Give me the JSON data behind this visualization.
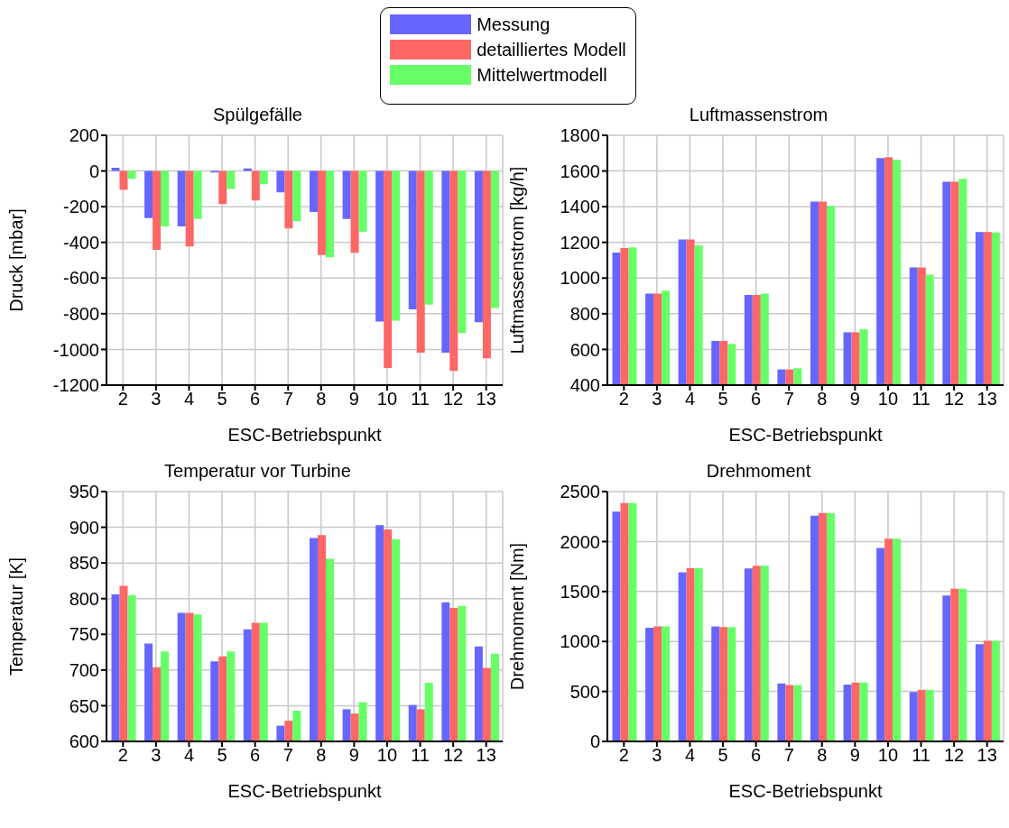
{
  "chart_data": [
    {
      "type": "bar",
      "title": "Spülgefälle",
      "xlabel": "ESC-Betriebspunkt",
      "ylabel": "Druck [mbar]",
      "categories": [
        "2",
        "3",
        "4",
        "5",
        "6",
        "7",
        "8",
        "9",
        "10",
        "11",
        "12",
        "13"
      ],
      "ylim": [
        -1200,
        200
      ],
      "yticks": [
        -1200,
        -1000,
        -800,
        -600,
        -400,
        -200,
        0,
        200
      ],
      "grid": true,
      "legend": "top",
      "series": [
        {
          "name": "Messung",
          "color": "#6666ff",
          "values": [
            18,
            -264,
            -311,
            -9,
            14,
            -120,
            -230,
            -269,
            -844,
            -775,
            -1018,
            -848
          ]
        },
        {
          "name": "detailliertes Modell",
          "color": "#ff6666",
          "values": [
            -106,
            -442,
            -423,
            -186,
            -165,
            -322,
            -471,
            -458,
            -1104,
            -1018,
            -1120,
            -1050
          ]
        },
        {
          "name": "Mittelwertmodell",
          "color": "#66ff66",
          "values": [
            -44,
            -311,
            -269,
            -101,
            -74,
            -281,
            -483,
            -340,
            -839,
            -749,
            -908,
            -768
          ]
        }
      ]
    },
    {
      "type": "bar",
      "title": "Luftmassenstrom",
      "xlabel": "ESC-Betriebspunkt",
      "ylabel": "Luftmassenstrom [kg/h]",
      "categories": [
        "2",
        "3",
        "4",
        "5",
        "6",
        "7",
        "8",
        "9",
        "10",
        "11",
        "12",
        "13"
      ],
      "ylim": [
        400,
        1800
      ],
      "yticks": [
        400,
        600,
        800,
        1000,
        1200,
        1400,
        1600,
        1800
      ],
      "grid": true,
      "series": [
        {
          "color": "#6666ff",
          "values": [
            1143,
            913,
            1216,
            648,
            906,
            488,
            1428,
            696,
            1673,
            1060,
            1540,
            1258
          ]
        },
        {
          "color": "#ff6666",
          "values": [
            1168,
            913,
            1216,
            648,
            906,
            488,
            1428,
            696,
            1678,
            1060,
            1540,
            1258
          ]
        },
        {
          "color": "#66ff66",
          "values": [
            1172,
            929,
            1184,
            630,
            913,
            494,
            1405,
            713,
            1662,
            1019,
            1556,
            1256
          ]
        }
      ]
    },
    {
      "type": "bar",
      "title": "Temperatur vor Turbine",
      "xlabel": "ESC-Betriebspunkt",
      "ylabel": "Temperatur [K]",
      "categories": [
        "2",
        "3",
        "4",
        "5",
        "6",
        "7",
        "8",
        "9",
        "10",
        "11",
        "12",
        "13"
      ],
      "ylim": [
        600,
        950
      ],
      "yticks": [
        600,
        650,
        700,
        750,
        800,
        850,
        900,
        950
      ],
      "grid": true,
      "series": [
        {
          "color": "#6666ff",
          "values": [
            806,
            737,
            780,
            712,
            757,
            622,
            885,
            645,
            903,
            651,
            795,
            733
          ]
        },
        {
          "color": "#ff6666",
          "values": [
            818,
            704,
            780,
            719,
            766,
            629,
            889,
            639,
            897,
            645,
            787,
            703
          ]
        },
        {
          "color": "#66ff66",
          "values": [
            805,
            726,
            778,
            726,
            766,
            643,
            856,
            655,
            883,
            682,
            790,
            723
          ]
        }
      ]
    },
    {
      "type": "bar",
      "title": "Drehmoment",
      "xlabel": "ESC-Betriebspunkt",
      "ylabel": "Drehmoment [Nm]",
      "categories": [
        "2",
        "3",
        "4",
        "5",
        "6",
        "7",
        "8",
        "9",
        "10",
        "11",
        "12",
        "13"
      ],
      "ylim": [
        0,
        2500
      ],
      "yticks": [
        0,
        500,
        1000,
        1500,
        2000,
        2500
      ],
      "grid": true,
      "series": [
        {
          "color": "#6666ff",
          "values": [
            2299,
            1138,
            1692,
            1151,
            1730,
            579,
            2258,
            569,
            1937,
            494,
            1459,
            972
          ]
        },
        {
          "color": "#ff6666",
          "values": [
            2384,
            1151,
            1733,
            1145,
            1758,
            563,
            2286,
            588,
            2028,
            516,
            1528,
            1006
          ]
        },
        {
          "color": "#66ff66",
          "values": [
            2384,
            1151,
            1733,
            1145,
            1758,
            563,
            2286,
            588,
            2028,
            516,
            1528,
            1006
          ]
        }
      ]
    }
  ]
}
